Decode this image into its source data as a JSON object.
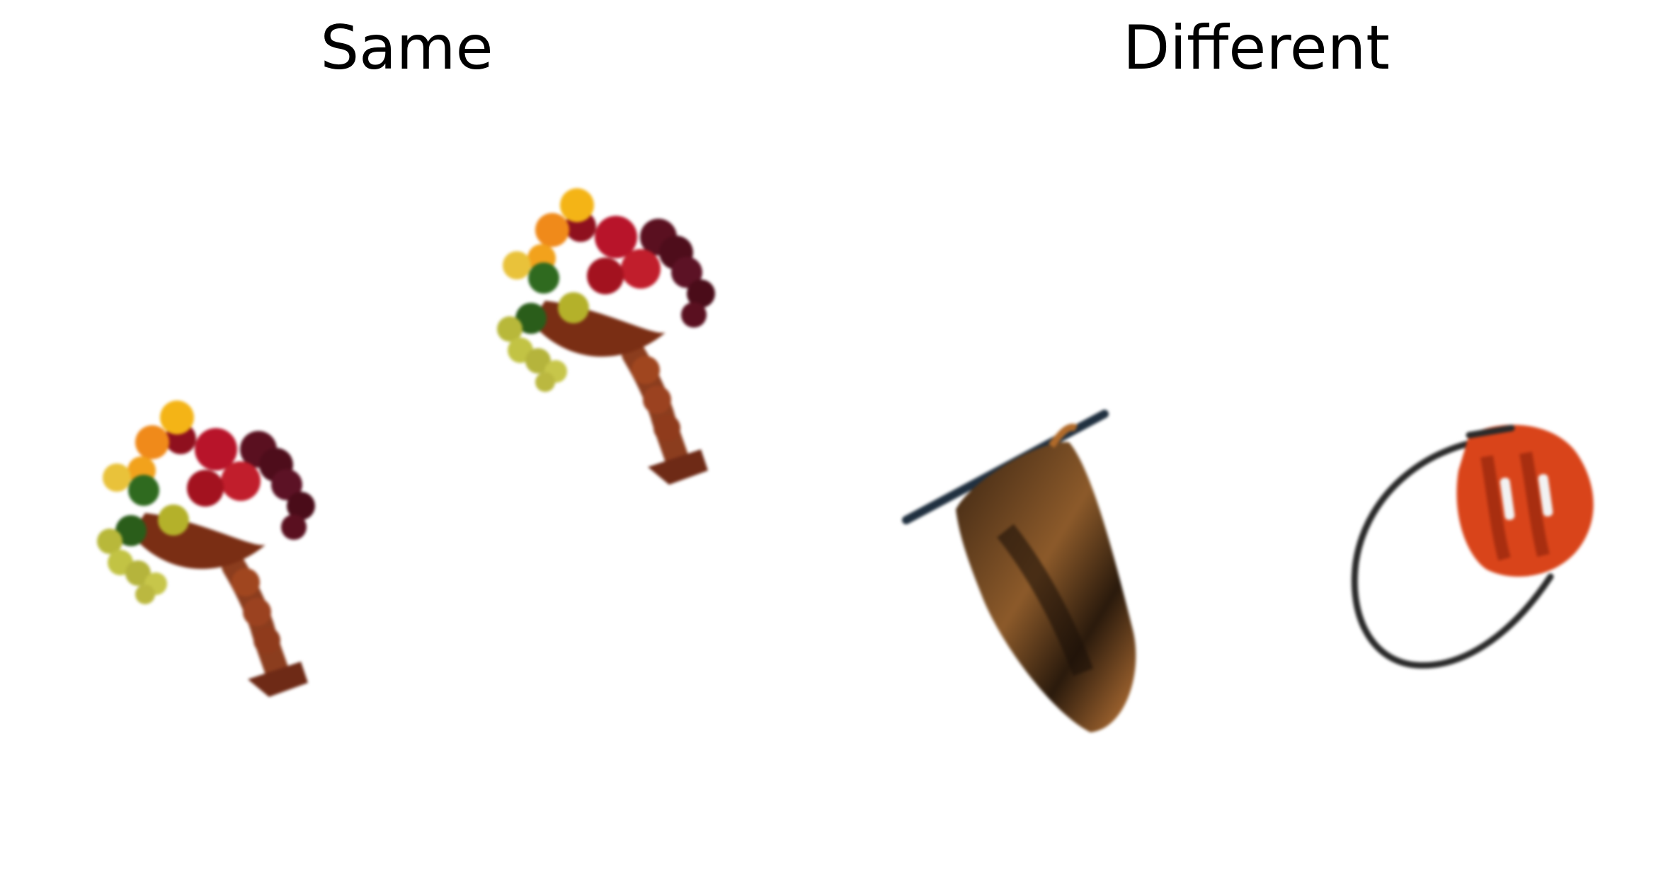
{
  "panels": {
    "same": {
      "title": "Same"
    },
    "different": {
      "title": "Different"
    }
  },
  "icons": {
    "same_first": "fruit-bowl-icon",
    "same_second": "fruit-bowl-icon",
    "different_first": "hat-icon",
    "different_second": "harness-icon"
  },
  "colors": {
    "background": "#ffffff",
    "title": "#000000"
  }
}
